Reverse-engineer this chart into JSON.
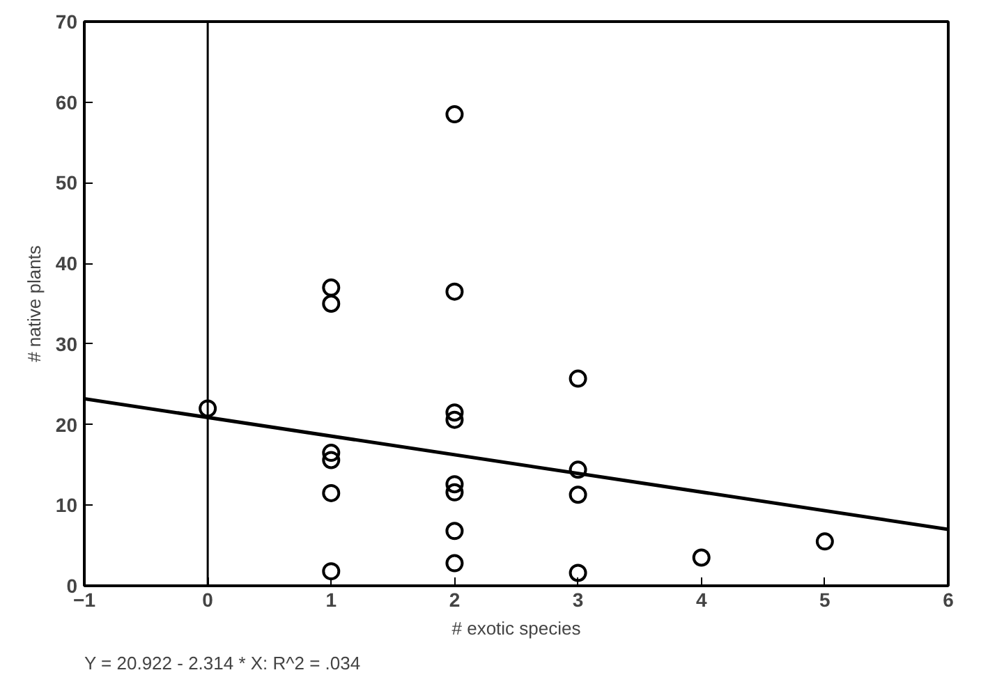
{
  "chart_data": {
    "type": "scatter",
    "xlabel": "# exotic species",
    "ylabel": "# native plants",
    "series": [
      {
        "color": "#000000",
        "x": [
          0,
          1,
          1,
          1,
          1,
          1,
          1,
          2,
          2,
          2,
          2,
          2,
          2,
          2,
          2,
          3,
          3,
          3,
          3,
          4,
          5
        ],
        "values": [
          22,
          37,
          35,
          16.5,
          15.6,
          11.5,
          1.8,
          58.5,
          36.5,
          21.5,
          20.6,
          12.6,
          11.6,
          6.8,
          2.8,
          25.7,
          14.4,
          11.3,
          1.6,
          3.5,
          5.5
        ]
      },
      {
        "type": "line",
        "color": "#000000",
        "marker": "none",
        "x": [
          -1,
          6
        ],
        "values": [
          23.2,
          7.0
        ]
      }
    ],
    "marker": "circle",
    "grid": false,
    "xlim": [
      -1,
      6
    ],
    "ylim": [
      0,
      70
    ],
    "xticks": [
      -1,
      0,
      1,
      2,
      3,
      4,
      5,
      6
    ],
    "yticks": [
      0,
      10,
      20,
      30,
      40,
      50,
      60,
      70
    ],
    "ref_lines": [
      {
        "axis": "x",
        "value": 0,
        "color": "#000000"
      }
    ],
    "annotations": [
      "Y = 20.922 - 2.314 * X: R^2 = .034"
    ]
  }
}
